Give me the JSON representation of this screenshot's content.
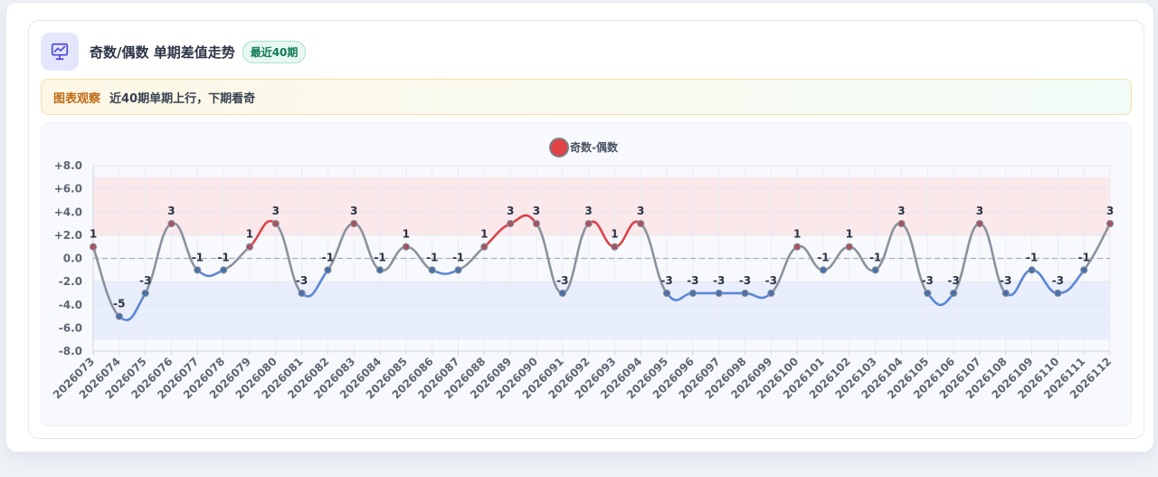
{
  "header": {
    "title": "奇数/偶数 单期差值走势",
    "badge": "最近40期"
  },
  "insight": {
    "label": "图表观察",
    "text": "近40期单期上行，下期看奇"
  },
  "colors": {
    "positive": "#d9454a",
    "negative": "#5b86d6",
    "neutral": "#8b929e",
    "positive_band": "#fbe5e8",
    "negative_band": "#e5ecfa",
    "legend_marker": "#e04346"
  },
  "chart_data": {
    "type": "line",
    "legend": [
      "奇数-偶数"
    ],
    "legend_position": "top-center",
    "ylim": [
      -8,
      8
    ],
    "yticks": [
      "+8.0",
      "+6.0",
      "+4.0",
      "+2.0",
      "0.0",
      "-2.0",
      "-4.0",
      "-6.0",
      "-8.0"
    ],
    "positive_band": [
      2,
      7
    ],
    "negative_band": [
      -7,
      -2
    ],
    "zero_line": "dashed",
    "grid": true,
    "categories": [
      "2026073",
      "2026074",
      "2026075",
      "2026076",
      "2026077",
      "2026078",
      "2026079",
      "2026080",
      "2026081",
      "2026082",
      "2026083",
      "2026084",
      "2026085",
      "2026086",
      "2026087",
      "2026088",
      "2026089",
      "2026090",
      "2026091",
      "2026092",
      "2026093",
      "2026094",
      "2026095",
      "2026096",
      "2026097",
      "2026098",
      "2026099",
      "2026100",
      "2026101",
      "2026102",
      "2026103",
      "2026104",
      "2026105",
      "2026106",
      "2026107",
      "2026108",
      "2026109",
      "2026110",
      "2026111",
      "2026112"
    ],
    "series": [
      {
        "name": "奇数-偶数",
        "values": [
          1,
          -5,
          -3,
          3,
          -1,
          -1,
          1,
          3,
          -3,
          -1,
          3,
          -1,
          1,
          -1,
          -1,
          1,
          3,
          3,
          -3,
          3,
          1,
          3,
          -3,
          -3,
          -3,
          -3,
          -3,
          1,
          -1,
          1,
          -1,
          3,
          -3,
          -3,
          3,
          -3,
          -1,
          -3,
          -1,
          3
        ]
      }
    ]
  }
}
